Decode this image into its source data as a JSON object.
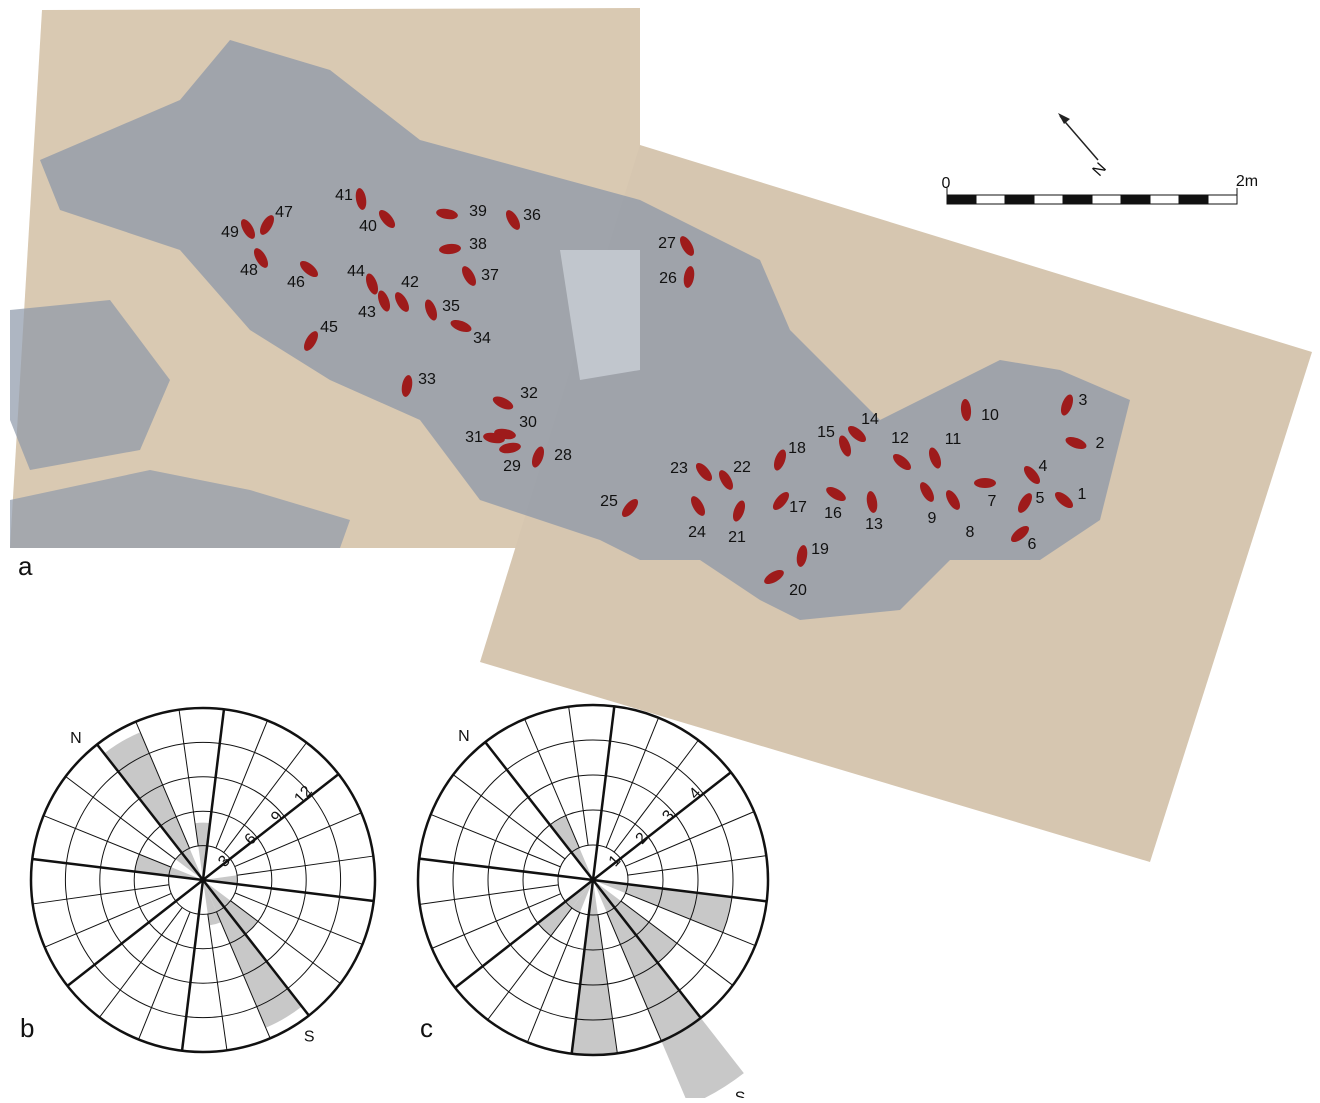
{
  "panels": [
    "a",
    "b",
    "c"
  ],
  "map": {
    "footprints": [
      "1",
      "2",
      "3",
      "4",
      "5",
      "6",
      "7",
      "8",
      "9",
      "10",
      "11",
      "12",
      "13",
      "14",
      "15",
      "16",
      "17",
      "18",
      "19",
      "20",
      "21",
      "22",
      "23",
      "24",
      "25",
      "26",
      "27",
      "28",
      "29",
      "30",
      "31",
      "32",
      "33",
      "34",
      "35",
      "36",
      "37",
      "38",
      "39",
      "40",
      "41",
      "42",
      "43",
      "44",
      "45",
      "46",
      "47",
      "48",
      "49"
    ],
    "scale_bar": [
      "0",
      "2m"
    ],
    "north": "N"
  },
  "chart_data": [
    {
      "type": "rose",
      "direction_labels": [
        "N",
        "S"
      ],
      "rlim": [
        0,
        15
      ],
      "rticks": [
        3,
        6,
        9,
        12
      ],
      "color": "#c8c8c8",
      "values": [
        14,
        0,
        5,
        0,
        0,
        0,
        0,
        0,
        3,
        0,
        0,
        6,
        14,
        4,
        0,
        0,
        0,
        0,
        0,
        0,
        0,
        6,
        0,
        3
      ]
    },
    {
      "type": "rose",
      "direction_labels": [
        "N",
        "S"
      ],
      "rlim": [
        0,
        5
      ],
      "rticks": [
        1,
        2,
        3,
        4
      ],
      "color": "#c8c8c8",
      "values": [
        2,
        0,
        0,
        0,
        0,
        0,
        0,
        0,
        0,
        4,
        0,
        3,
        7,
        0,
        5,
        0,
        1,
        2,
        0,
        0,
        0,
        0,
        0,
        0
      ]
    }
  ]
}
